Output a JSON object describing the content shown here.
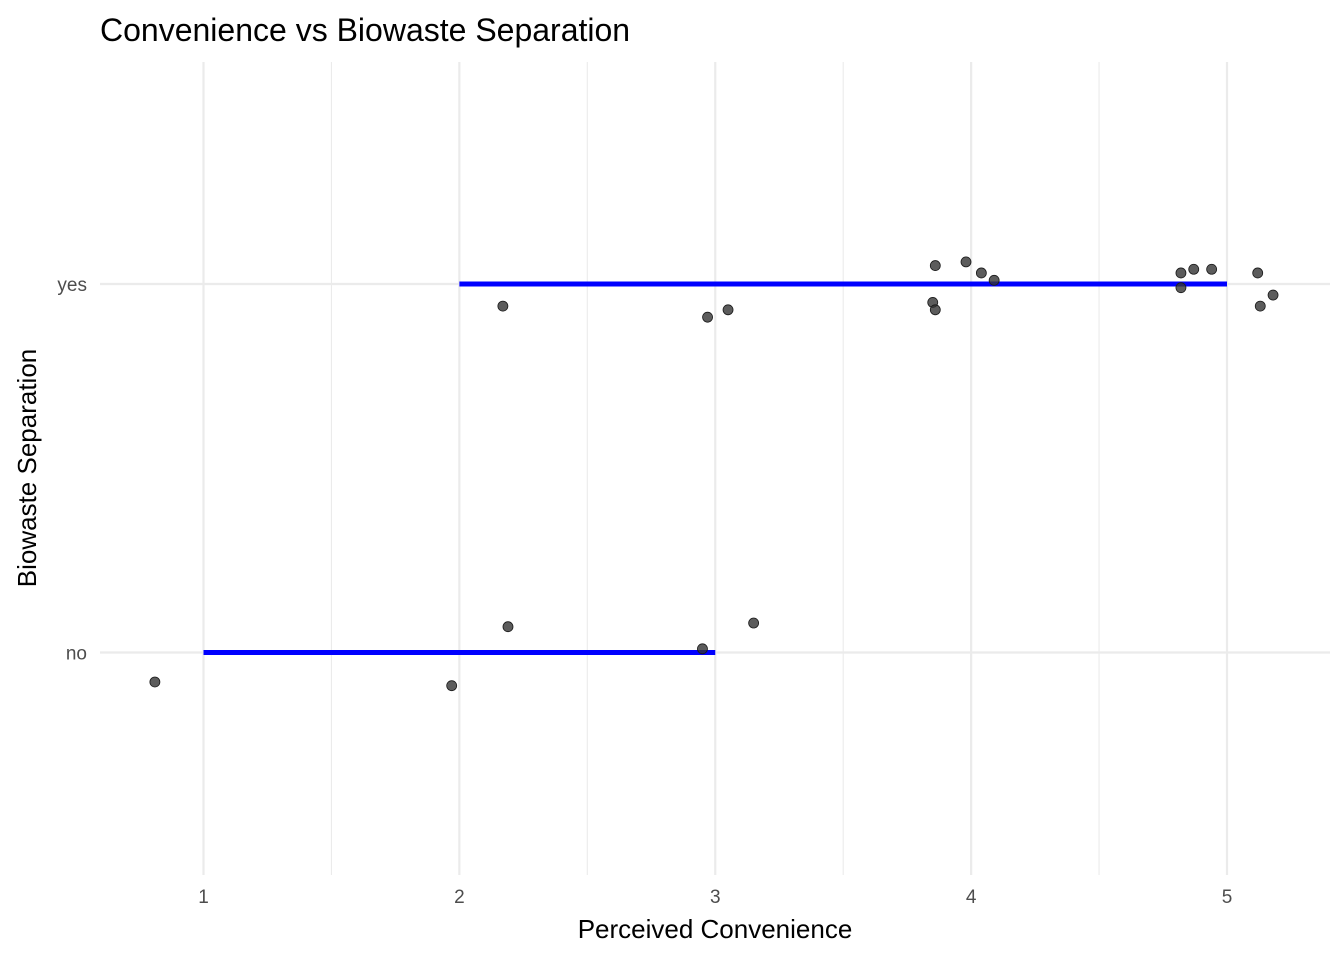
{
  "chart_data": {
    "type": "scatter",
    "title": "Convenience vs Biowaste Separation",
    "xlabel": "Perceived Convenience",
    "ylabel": "Biowaste Separation",
    "xlim": [
      0.6,
      5.4
    ],
    "x_ticks": [
      "1",
      "2",
      "3",
      "4",
      "5"
    ],
    "categories": [
      "no",
      "yes"
    ],
    "grid": true,
    "colors": {
      "range_line": "#0000ff",
      "point": "#333333"
    },
    "ranges": [
      {
        "category": "no",
        "x_min": 1,
        "x_max": 3
      },
      {
        "category": "yes",
        "x_min": 2,
        "x_max": 5
      }
    ],
    "points": [
      {
        "x": 0.81,
        "y": "no",
        "jitter": -0.08
      },
      {
        "x": 1.97,
        "y": "no",
        "jitter": -0.09
      },
      {
        "x": 2.19,
        "y": "no",
        "jitter": 0.07
      },
      {
        "x": 2.95,
        "y": "no",
        "jitter": 0.01
      },
      {
        "x": 3.15,
        "y": "no",
        "jitter": 0.08
      },
      {
        "x": 2.17,
        "y": "yes",
        "jitter": -0.06
      },
      {
        "x": 2.97,
        "y": "yes",
        "jitter": -0.09
      },
      {
        "x": 3.05,
        "y": "yes",
        "jitter": -0.07
      },
      {
        "x": 3.86,
        "y": "yes",
        "jitter": 0.05
      },
      {
        "x": 3.85,
        "y": "yes",
        "jitter": -0.05
      },
      {
        "x": 3.86,
        "y": "yes",
        "jitter": -0.07
      },
      {
        "x": 3.98,
        "y": "yes",
        "jitter": 0.06
      },
      {
        "x": 4.04,
        "y": "yes",
        "jitter": 0.03
      },
      {
        "x": 4.09,
        "y": "yes",
        "jitter": 0.01
      },
      {
        "x": 4.82,
        "y": "yes",
        "jitter": 0.03
      },
      {
        "x": 4.82,
        "y": "yes",
        "jitter": -0.01
      },
      {
        "x": 4.87,
        "y": "yes",
        "jitter": 0.04
      },
      {
        "x": 4.94,
        "y": "yes",
        "jitter": 0.04
      },
      {
        "x": 5.12,
        "y": "yes",
        "jitter": 0.03
      },
      {
        "x": 5.13,
        "y": "yes",
        "jitter": -0.06
      },
      {
        "x": 5.18,
        "y": "yes",
        "jitter": -0.03
      }
    ]
  }
}
